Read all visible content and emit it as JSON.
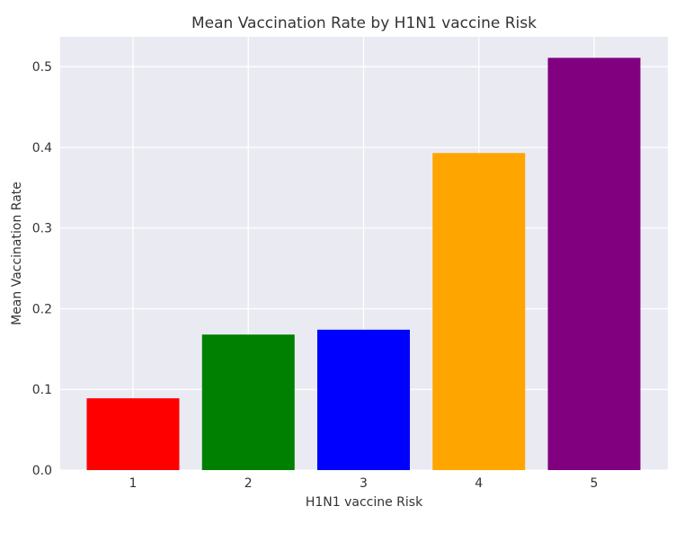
{
  "chart_data": {
    "type": "bar",
    "title": "Mean Vaccination Rate by H1N1 vaccine Risk",
    "xlabel": "H1N1 vaccine Risk",
    "ylabel": "Mean Vaccination Rate",
    "categories": [
      "1",
      "2",
      "3",
      "4",
      "5"
    ],
    "values": [
      0.089,
      0.168,
      0.174,
      0.393,
      0.511
    ],
    "colors": [
      "#ff0000",
      "#008000",
      "#0000ff",
      "#ffa500",
      "#800080"
    ],
    "ylim": [
      0,
      0.537
    ],
    "yticks": [
      "0.0",
      "0.1",
      "0.2",
      "0.3",
      "0.4",
      "0.5"
    ],
    "grid": true,
    "background": "#eaeaf2",
    "legend": "none"
  }
}
